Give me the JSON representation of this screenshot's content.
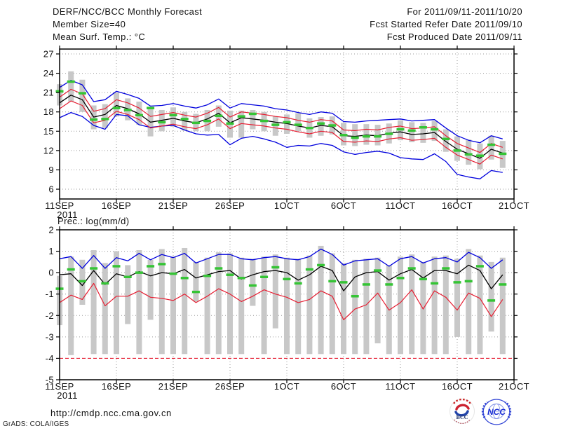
{
  "header": {
    "title": "DERF/NCC/BCC Monthly Forecast",
    "member_size": "Member Size=40",
    "period": "For 2011/09/11-2011/10/20",
    "refer_date": "Fcst Started Refer Date 2011/09/10",
    "produced_date": "Fcst Produced Date 2011/09/11"
  },
  "charts_common": {
    "x_tick_labels": [
      "11SEP",
      "16SEP",
      "21SEP",
      "26SEP",
      "1OCT",
      "6OCT",
      "11OCT",
      "16OCT",
      "21OCT"
    ],
    "x_tick_days": [
      0,
      5,
      10,
      15,
      20,
      25,
      30,
      35,
      40
    ],
    "year_label": "2011",
    "n_slots": 40,
    "grid_color": "#9a9a9a",
    "axis_color": "#000000"
  },
  "chart_data": [
    {
      "name": "temperature",
      "type": "line",
      "title": "Mean Surf. Temp.: °C",
      "ylabel": "",
      "ylim": [
        4.48,
        27.76
      ],
      "yticks": [
        27,
        24,
        21,
        18,
        15,
        12,
        9,
        6
      ],
      "grid": true,
      "bars": {
        "color": "#c8c8c8",
        "top": [
          22.3,
          24.3,
          23.0,
          19.0,
          19.2,
          21.0,
          20.1,
          19.6,
          18.7,
          18.3,
          18.7,
          18.0,
          17.7,
          18.3,
          19.0,
          18.2,
          18.2,
          18.3,
          18.0,
          17.3,
          17.6,
          17.8,
          17.0,
          17.2,
          17.3,
          16.3,
          16.1,
          16.1,
          16.0,
          16.2,
          16.7,
          16.4,
          16.3,
          16.6,
          15.3,
          14.2,
          13.7,
          13.1,
          14.3,
          13.5
        ],
        "bottom": [
          19.0,
          19.6,
          18.0,
          15.3,
          15.5,
          17.3,
          16.7,
          16.0,
          14.2,
          15.0,
          15.7,
          15.1,
          15.0,
          15.0,
          15.7,
          14.0,
          14.0,
          15.3,
          15.0,
          14.3,
          14.6,
          15.0,
          14.0,
          14.3,
          14.5,
          12.8,
          12.7,
          12.9,
          12.8,
          13.1,
          13.6,
          13.3,
          13.2,
          13.5,
          11.8,
          10.4,
          9.8,
          9.1,
          10.6,
          9.3
        ]
      },
      "series": [
        {
          "name": "ensemble-max",
          "color": "#0000dd",
          "width": 1.3,
          "values": [
            21.8,
            22.9,
            22.2,
            19.6,
            19.9,
            21.2,
            20.7,
            20.1,
            18.9,
            19.0,
            19.3,
            18.9,
            18.6,
            19.1,
            20.0,
            18.6,
            19.3,
            19.1,
            18.9,
            18.5,
            18.3,
            17.9,
            17.6,
            18.0,
            17.8,
            16.5,
            16.4,
            16.6,
            16.7,
            16.8,
            16.9,
            16.6,
            16.7,
            16.8,
            15.5,
            14.3,
            13.6,
            13.2,
            14.3,
            13.8
          ]
        },
        {
          "name": "ensemble-min",
          "color": "#0000dd",
          "width": 1.3,
          "values": [
            17.1,
            17.9,
            17.3,
            15.9,
            15.3,
            17.6,
            17.4,
            16.0,
            15.6,
            15.8,
            15.9,
            15.2,
            14.6,
            14.4,
            14.5,
            12.9,
            13.9,
            14.2,
            13.8,
            13.3,
            12.5,
            12.8,
            12.7,
            13.1,
            12.8,
            11.8,
            11.4,
            11.7,
            11.9,
            11.6,
            10.9,
            10.7,
            10.6,
            11.5,
            10.3,
            8.3,
            7.9,
            7.6,
            8.9,
            8.6
          ]
        },
        {
          "name": "upper-band",
          "color": "#e61e32",
          "width": 1.2,
          "values": [
            20.3,
            21.5,
            20.8,
            18.1,
            18.5,
            19.9,
            19.4,
            18.6,
            17.3,
            17.6,
            17.9,
            17.5,
            17.2,
            17.8,
            18.7,
            17.2,
            18.0,
            17.8,
            17.6,
            17.3,
            17.1,
            16.7,
            16.4,
            16.8,
            16.6,
            15.2,
            15.1,
            15.3,
            15.2,
            15.6,
            15.8,
            15.4,
            15.5,
            15.7,
            14.3,
            13.1,
            12.4,
            11.7,
            13.1,
            12.5
          ]
        },
        {
          "name": "lower-band",
          "color": "#e61e32",
          "width": 1.2,
          "values": [
            18.5,
            19.7,
            19.0,
            16.3,
            16.7,
            18.1,
            17.6,
            16.8,
            15.5,
            15.8,
            16.1,
            15.7,
            15.4,
            16.0,
            16.9,
            15.4,
            16.2,
            16.0,
            15.8,
            15.5,
            15.3,
            14.9,
            14.6,
            15.0,
            14.8,
            13.4,
            13.3,
            13.5,
            13.4,
            13.8,
            14.0,
            13.6,
            13.7,
            13.9,
            12.5,
            11.3,
            10.6,
            9.9,
            11.3,
            10.7
          ]
        },
        {
          "name": "ensemble-mean",
          "color": "#000000",
          "width": 1.3,
          "values": [
            19.4,
            20.6,
            19.9,
            17.2,
            17.6,
            19.0,
            18.5,
            17.7,
            16.4,
            16.7,
            17.0,
            16.6,
            16.3,
            16.9,
            17.8,
            16.3,
            17.1,
            16.9,
            16.7,
            16.4,
            16.2,
            15.8,
            15.5,
            15.9,
            15.7,
            14.3,
            14.2,
            14.4,
            14.3,
            14.7,
            14.9,
            14.5,
            14.6,
            14.8,
            13.4,
            12.2,
            11.5,
            10.8,
            12.2,
            11.6
          ]
        }
      ],
      "markers": {
        "name": "green-dash",
        "color": "#35c435",
        "values": [
          21.2,
          22.7,
          20.9,
          16.8,
          16.9,
          18.6,
          18.3,
          17.5,
          18.6,
          16.4,
          17.5,
          16.9,
          16.3,
          16.6,
          17.4,
          16.2,
          17.3,
          17.7,
          16.6,
          16.0,
          16.4,
          16.0,
          15.5,
          16.2,
          15.9,
          14.4,
          14.0,
          14.2,
          14.2,
          14.6,
          15.3,
          15.1,
          15.6,
          15.3,
          13.8,
          12.0,
          11.4,
          11.2,
          12.9,
          11.5
        ]
      }
    },
    {
      "name": "precipitation",
      "type": "line",
      "title": "Prec.: log(mm/d)",
      "ylabel": "",
      "ylim": [
        -5,
        2
      ],
      "yticks": [
        2,
        1,
        0,
        -1,
        -2,
        -3,
        -4,
        -5
      ],
      "grid": true,
      "baseline": {
        "value": -4,
        "color": "#e61e32",
        "style": "dashed"
      },
      "bars": {
        "color": "#c8c8c8",
        "top": [
          -0.15,
          0.75,
          0.6,
          1.05,
          0.45,
          1.0,
          0.35,
          1.05,
          0.6,
          1.1,
          0.75,
          1.15,
          0.5,
          0.7,
          0.95,
          0.9,
          0.7,
          0.65,
          0.75,
          0.85,
          0.7,
          0.65,
          0.8,
          1.25,
          0.9,
          0.45,
          0.6,
          0.65,
          0.7,
          0.35,
          0.75,
          0.85,
          0.5,
          0.75,
          0.8,
          0.65,
          1.1,
          0.8,
          0.5,
          0.7
        ],
        "bottom": [
          -2.45,
          -3.85,
          -1.5,
          -3.8,
          -3.8,
          -3.8,
          -2.4,
          -3.8,
          -2.2,
          -3.8,
          -3.8,
          -3.8,
          -1.35,
          -3.8,
          -3.8,
          -3.8,
          -3.8,
          -1.55,
          -3.8,
          -2.6,
          -3.8,
          -3.8,
          -3.8,
          -3.8,
          -3.8,
          -3.8,
          -3.8,
          -3.8,
          -3.3,
          -3.8,
          -3.8,
          -3.8,
          -3.8,
          -3.8,
          -3.8,
          -3.0,
          -3.8,
          -3.8,
          -2.75,
          -3.8
        ]
      },
      "series": [
        {
          "name": "ensemble-max",
          "color": "#0000dd",
          "width": 1.3,
          "values": [
            0.65,
            0.75,
            0.2,
            0.8,
            0.2,
            0.7,
            0.55,
            0.9,
            0.6,
            0.85,
            0.7,
            0.9,
            0.45,
            0.65,
            0.85,
            0.85,
            0.65,
            0.6,
            0.7,
            0.75,
            0.65,
            0.6,
            0.75,
            1.1,
            0.85,
            0.35,
            0.55,
            0.6,
            0.65,
            0.3,
            0.65,
            0.75,
            0.45,
            0.65,
            0.7,
            0.5,
            0.95,
            0.7,
            0.2,
            0.6
          ]
        },
        {
          "name": "lower-band",
          "color": "#e61e32",
          "width": 1.2,
          "values": [
            -1.4,
            -1.05,
            -1.25,
            -0.5,
            -1.55,
            -1.1,
            -1.1,
            -0.85,
            -1.15,
            -1.2,
            -1.3,
            -1.0,
            -1.4,
            -1.1,
            -0.75,
            -1.0,
            -1.35,
            -1.1,
            -0.8,
            -1.0,
            -1.15,
            -1.4,
            -1.25,
            -0.85,
            -1.1,
            -2.2,
            -1.7,
            -1.5,
            -0.95,
            -1.75,
            -1.4,
            -0.8,
            -1.7,
            -0.85,
            -1.15,
            -1.75,
            -0.95,
            -1.2,
            -2.05,
            -1.25
          ]
        },
        {
          "name": "ensemble-mean",
          "color": "#000000",
          "width": 1.3,
          "values": [
            -0.1,
            -0.05,
            -0.6,
            0.1,
            -0.55,
            -0.05,
            -0.2,
            0.05,
            -0.15,
            0.0,
            -0.05,
            0.15,
            -0.25,
            -0.1,
            0.05,
            0.1,
            -0.3,
            -0.1,
            0.05,
            0.1,
            0.0,
            -0.35,
            -0.1,
            0.3,
            0.1,
            -0.85,
            -0.2,
            0.0,
            0.05,
            -0.35,
            -0.05,
            0.15,
            -0.25,
            0.1,
            0.1,
            -0.05,
            0.35,
            0.1,
            -0.75,
            -0.1
          ]
        }
      ],
      "markers": {
        "name": "green-dash",
        "color": "#35c435",
        "values": [
          -0.75,
          0.15,
          -0.4,
          0.2,
          -0.5,
          0.3,
          -0.2,
          0.0,
          0.3,
          0.4,
          -0.05,
          -0.25,
          -0.9,
          -0.15,
          0.2,
          -0.1,
          -0.25,
          -0.6,
          -0.2,
          0.25,
          -0.3,
          -0.5,
          0.15,
          0.35,
          -0.4,
          -0.45,
          -1.1,
          -0.55,
          0.1,
          -0.55,
          -0.25,
          0.2,
          -0.3,
          -0.5,
          0.2,
          -0.45,
          -0.4,
          0.3,
          -1.3,
          -0.55
        ]
      }
    }
  ],
  "footer": {
    "url": "http://cmdp.ncc.cma.gov.cn",
    "credit": "GrADS: COLA/IGES",
    "logos": [
      {
        "label": "BCC"
      },
      {
        "label": "NCC"
      }
    ]
  }
}
